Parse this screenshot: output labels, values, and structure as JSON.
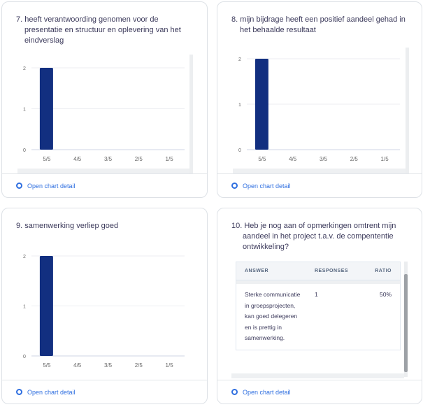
{
  "footer_link": "Open chart detail",
  "colors": {
    "bar": "#122f80",
    "link": "#2f6fe0"
  },
  "chart_data": [
    {
      "type": "bar",
      "title": "7. heeft verantwoording genomen voor de presentatie en structuur en oplevering van het eindverslag",
      "categories": [
        "5/5",
        "4/5",
        "3/5",
        "2/5",
        "1/5"
      ],
      "values": [
        2,
        0,
        0,
        0,
        0
      ],
      "yticks": [
        "0",
        "1",
        "2"
      ],
      "ylim": [
        0,
        2
      ]
    },
    {
      "type": "bar",
      "title": "8. mijn bijdrage heeft een positief aandeel gehad in het behaalde resultaat",
      "categories": [
        "5/5",
        "4/5",
        "3/5",
        "2/5",
        "1/5"
      ],
      "values": [
        2,
        0,
        0,
        0,
        0
      ],
      "yticks": [
        "0",
        "1",
        "2"
      ],
      "ylim": [
        0,
        2
      ]
    },
    {
      "type": "bar",
      "title": "9. samenwerking verliep goed",
      "categories": [
        "5/5",
        "4/5",
        "3/5",
        "2/5",
        "1/5"
      ],
      "values": [
        2,
        0,
        0,
        0,
        0
      ],
      "yticks": [
        "0",
        "1",
        "2"
      ],
      "ylim": [
        0,
        2
      ]
    },
    {
      "type": "table",
      "title": "10. Heb je nog aan of opmerkingen omtrent mijn aandeel in het project t.a.v. de compententie ontwikkeling?",
      "columns": [
        "ANSWER",
        "RESPONSES",
        "RATIO"
      ],
      "rows": [
        [
          "Sterke communicatie in groepsprojecten, kan goed delegeren en is prettig in samenwerking.",
          "1",
          "50%"
        ]
      ]
    }
  ]
}
